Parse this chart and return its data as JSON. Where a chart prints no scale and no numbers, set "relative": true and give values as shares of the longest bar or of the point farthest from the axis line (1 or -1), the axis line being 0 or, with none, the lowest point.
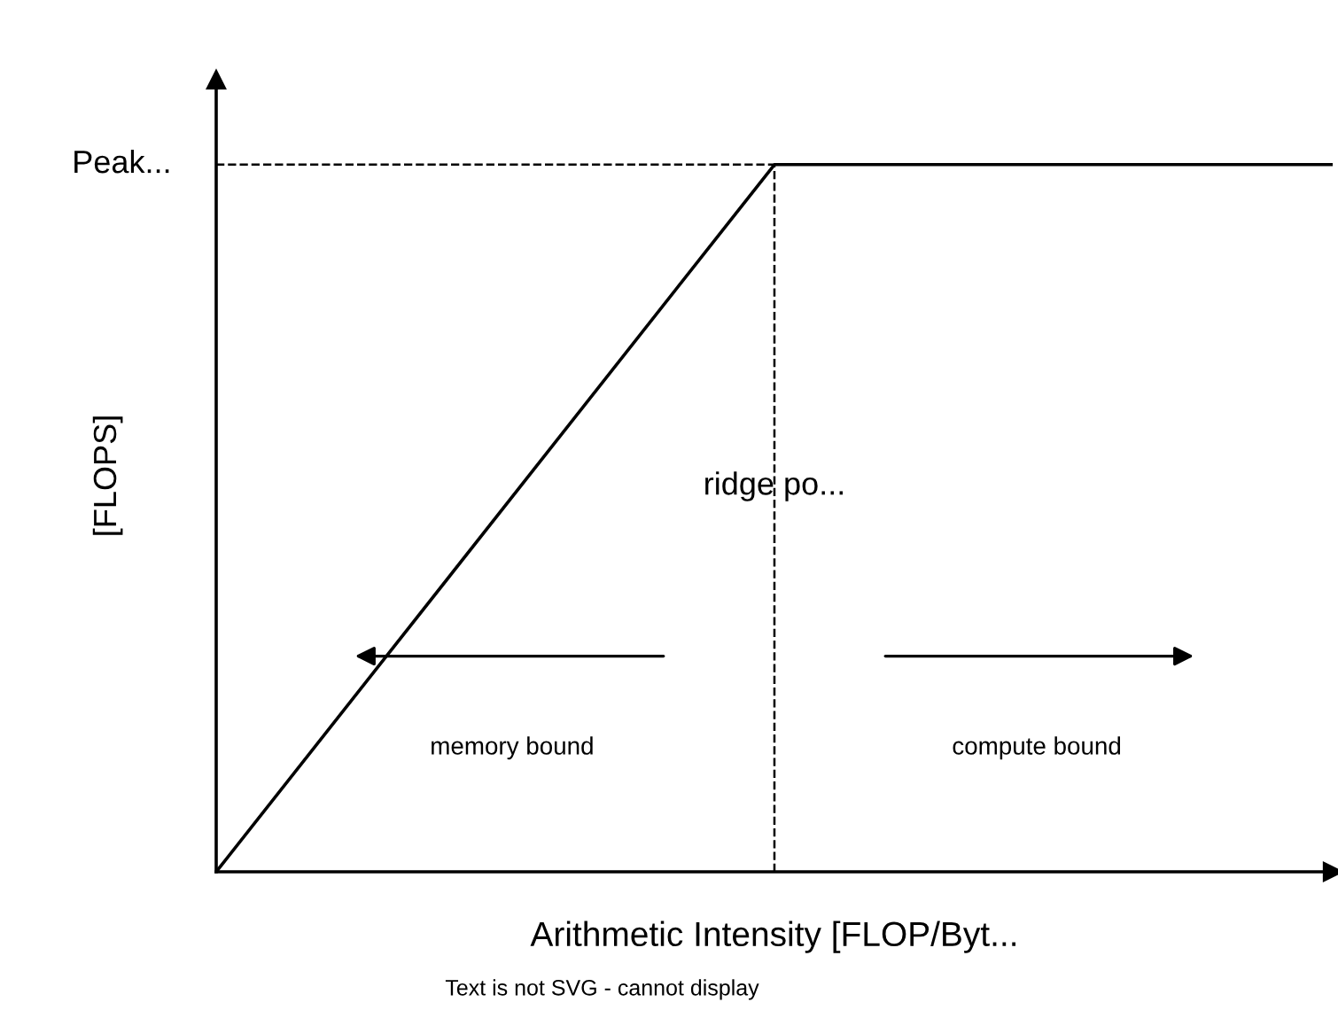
{
  "chart_data": {
    "type": "line",
    "relative": true,
    "categories": [
      null,
      null,
      null
    ],
    "series": [
      {
        "color": "#000000",
        "values": [
          0,
          1,
          1
        ]
      }
    ],
    "xlabel": "Arithmetic Intensity [FLOP/Byt...",
    "ylabel": "[FLOPS]",
    "ref_lines": [
      {
        "axis": "y",
        "value": 1,
        "label": "Peak...",
        "line_style": "dashed",
        "color": "#000000"
      }
    ],
    "annotations": [
      "ridge po...",
      "memory bound",
      "compute bound",
      "Text is not SVG - cannot display"
    ],
    "marker": "none",
    "line_style": "solid",
    "legend": false
  }
}
